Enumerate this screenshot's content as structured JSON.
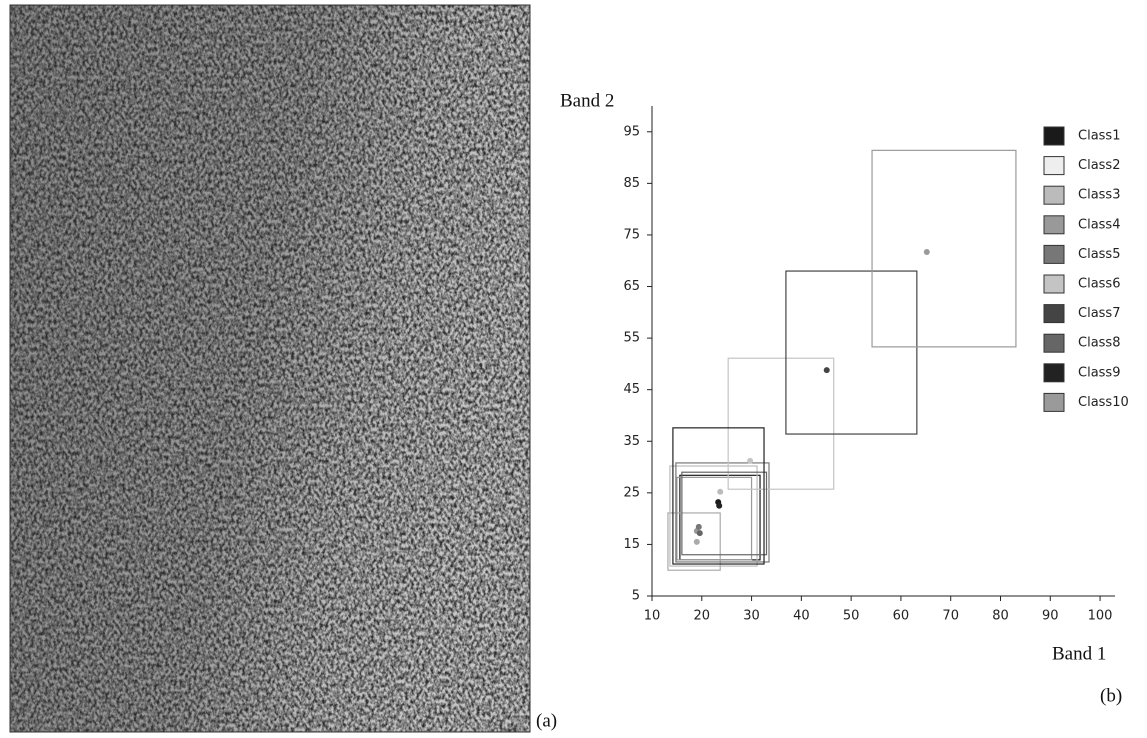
{
  "image_label": "(a)",
  "chart_data": {
    "type": "rectangles",
    "panel_label": "(b)",
    "xlabel": "Band 1",
    "ylabel": "Band 2",
    "xlim": [
      10,
      103
    ],
    "ylim": [
      5,
      100
    ],
    "xticks": [
      10,
      20,
      30,
      40,
      50,
      60,
      70,
      80,
      90,
      100
    ],
    "yticks": [
      5,
      15,
      25,
      35,
      45,
      55,
      65,
      75,
      85,
      95
    ],
    "series": [
      {
        "name": "Class1",
        "color": "#1a1a1a",
        "box": [
          15.6,
          31.7,
          12,
          28.4
        ],
        "mean": [
          23.3,
          23.2
        ]
      },
      {
        "name": "Class2",
        "color": "#eeeeee",
        "box": [
          13.2,
          23.7,
          10,
          21.1
        ],
        "mean": [
          19,
          15.5
        ]
      },
      {
        "name": "Class3",
        "color": "#bbbbbb",
        "box": [
          13.6,
          31.1,
          10.8,
          30.2
        ],
        "mean": [
          23.7,
          25.2
        ]
      },
      {
        "name": "Class4",
        "color": "#999999",
        "box": [
          15,
          30,
          12,
          28
        ],
        "mean": [
          19,
          17.6
        ]
      },
      {
        "name": "Class5",
        "color": "#777777",
        "box": [
          14.8,
          33.5,
          11.6,
          30.8
        ],
        "mean": [
          19.4,
          18.4
        ]
      },
      {
        "name": "Class6",
        "color": "#c4c4c4",
        "box": [
          25.3,
          46.5,
          25.7,
          51.1
        ],
        "mean": [
          29.7,
          31.2
        ]
      },
      {
        "name": "Class7",
        "color": "#444444",
        "box": [
          36.9,
          63.2,
          36.4,
          68
        ],
        "mean": [
          45.1,
          48.8
        ]
      },
      {
        "name": "Class8",
        "color": "#666666",
        "box": [
          16,
          33,
          13,
          29
        ],
        "mean": [
          19.6,
          17.2
        ]
      },
      {
        "name": "Class9",
        "color": "#222222",
        "box": [
          14.2,
          32.5,
          11.2,
          37.6
        ],
        "mean": [
          23.5,
          22.5
        ]
      },
      {
        "name": "Class10",
        "color": "#9a9a9a",
        "box": [
          54.2,
          83.1,
          53.3,
          91.4
        ],
        "mean": [
          65.2,
          71.7
        ]
      }
    ]
  }
}
